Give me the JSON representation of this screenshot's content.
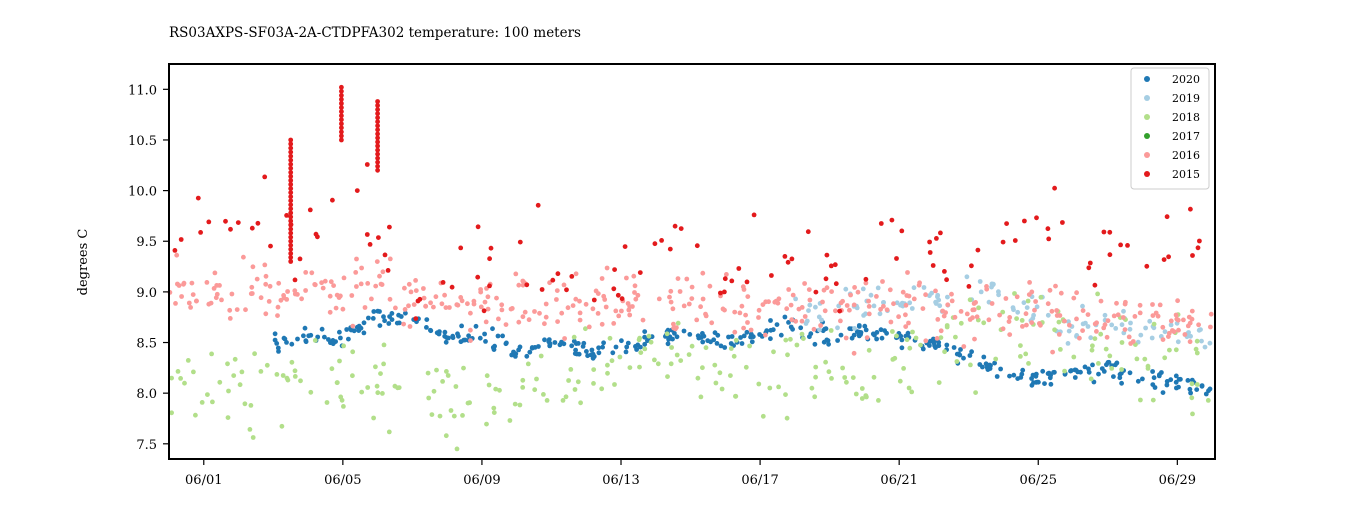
{
  "chart_data": {
    "type": "scatter",
    "title": "RS03AXPS-SF03A-2A-CTDPFA302 temperature: 100 meters",
    "xlabel": "",
    "ylabel": "degrees C",
    "x_range": [
      "05/31 00:00",
      "06/30 02:00"
    ],
    "ylim": [
      7.35,
      11.25
    ],
    "x_ticks": [
      "06/01",
      "06/05",
      "06/09",
      "06/13",
      "06/17",
      "06/21",
      "06/25",
      "06/29"
    ],
    "y_ticks": [
      "7.5",
      "8.0",
      "8.5",
      "9.0",
      "9.5",
      "10.0",
      "10.5",
      "11.0"
    ],
    "grid": false,
    "legend_position": "top-right",
    "series": [
      {
        "name": "2020",
        "color": "#1f78b4",
        "x": [
          "06/01",
          "06/02",
          "06/03",
          "06/04",
          "06/05",
          "06/06",
          "06/07",
          "06/08",
          "06/09",
          "06/10",
          "06/11",
          "06/12",
          "06/13",
          "06/14",
          "06/15",
          "06/16",
          "06/17",
          "06/18",
          "06/19",
          "06/20",
          "06/21",
          "06/22",
          "06/23",
          "06/24",
          "06/25",
          "06/26",
          "06/27",
          "06/28",
          "06/29",
          "06/30"
        ],
        "y": [
          null,
          null,
          8.5,
          8.55,
          8.55,
          8.75,
          8.75,
          8.55,
          8.6,
          8.4,
          8.5,
          8.4,
          8.45,
          8.55,
          8.6,
          8.5,
          8.6,
          8.65,
          8.55,
          8.6,
          8.55,
          8.5,
          8.35,
          8.2,
          8.15,
          8.2,
          8.25,
          8.1,
          8.1,
          8.05
        ]
      },
      {
        "name": "2019",
        "color": "#a6cee3",
        "x": [
          "06/18",
          "06/19",
          "06/20",
          "06/21",
          "06/22",
          "06/23",
          "06/24",
          "06/25",
          "06/26",
          "06/27",
          "06/28",
          "06/29",
          "06/30"
        ],
        "y": [
          8.75,
          8.85,
          8.9,
          8.9,
          8.9,
          9.0,
          8.95,
          8.8,
          8.6,
          8.7,
          8.65,
          8.6,
          8.55
        ]
      },
      {
        "name": "2018",
        "color": "#b2df8a",
        "x": [
          "05/31",
          "06/01",
          "06/02",
          "06/03",
          "06/04",
          "06/05",
          "06/06",
          "06/07",
          "06/08",
          "06/09",
          "06/10",
          "06/11",
          "06/12",
          "06/13",
          "06/14",
          "06/15",
          "06/16",
          "06/17",
          "06/18",
          "06/19",
          "06/20",
          "06/21",
          "06/22",
          "06/23",
          "06/24",
          "06/25",
          "06/26",
          "06/27",
          "06/28",
          "06/29",
          "06/30"
        ],
        "y": [
          8.1,
          8.05,
          8.0,
          8.1,
          8.15,
          8.1,
          8.0,
          7.9,
          7.85,
          8.0,
          8.05,
          8.1,
          8.2,
          8.3,
          8.35,
          8.3,
          8.25,
          8.2,
          8.15,
          8.15,
          8.2,
          8.25,
          8.4,
          8.5,
          8.55,
          8.6,
          8.5,
          8.4,
          8.35,
          8.3,
          8.3
        ]
      },
      {
        "name": "2017",
        "color": "#33a02c",
        "x": [],
        "y": []
      },
      {
        "name": "2016",
        "color": "#fb9a99",
        "x": [
          "05/31",
          "06/01",
          "06/02",
          "06/03",
          "06/04",
          "06/05",
          "06/06",
          "06/07",
          "06/08",
          "06/09",
          "06/10",
          "06/11",
          "06/12",
          "06/13",
          "06/14",
          "06/15",
          "06/16",
          "06/17",
          "06/18",
          "06/19",
          "06/20",
          "06/21",
          "06/22",
          "06/23",
          "06/24",
          "06/25",
          "06/26",
          "06/27",
          "06/28",
          "06/29",
          "06/30"
        ],
        "y": [
          9.0,
          9.05,
          9.0,
          9.05,
          9.0,
          9.0,
          9.05,
          8.95,
          8.9,
          8.9,
          8.85,
          8.9,
          8.85,
          8.9,
          8.85,
          8.85,
          8.9,
          8.85,
          8.9,
          8.85,
          8.8,
          8.85,
          8.8,
          8.8,
          8.75,
          8.75,
          8.8,
          8.8,
          8.75,
          8.7,
          8.75
        ]
      },
      {
        "name": "2015",
        "color": "#e31a1c",
        "x": [
          "05/31",
          "06/01",
          "06/02",
          "06/03",
          "06/04",
          "06/05",
          "06/06",
          "06/07",
          "06/08",
          "06/09",
          "06/10",
          "06/11",
          "06/12",
          "06/13",
          "06/14",
          "06/15",
          "06/16",
          "06/17",
          "06/18",
          "06/19",
          "06/20",
          "06/21",
          "06/22",
          "06/23",
          "06/24",
          "06/25",
          "06/26",
          "06/27",
          "06/28",
          "06/29",
          "06/30"
        ],
        "y": [
          9.6,
          9.5,
          9.6,
          9.9,
          9.4,
          10.0,
          9.7,
          9.0,
          9.3,
          9.3,
          9.1,
          9.3,
          9.1,
          9.0,
          9.5,
          9.3,
          9.1,
          9.4,
          9.5,
          9.2,
          9.2,
          9.6,
          9.4,
          9.3,
          9.6,
          9.7,
          9.5,
          9.3,
          9.4,
          9.5,
          9.4
        ]
      }
    ]
  }
}
